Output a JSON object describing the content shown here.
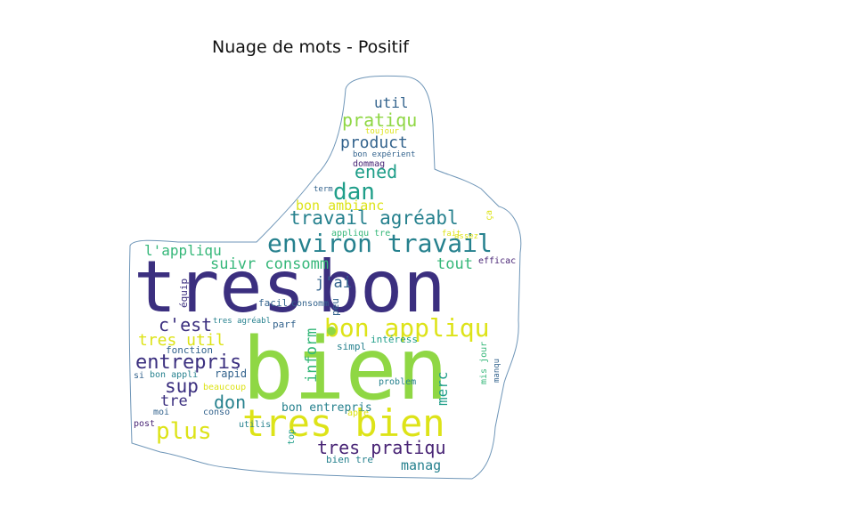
{
  "title": "Nuage de mots - Positif",
  "colors": {
    "indigo": "#3b2f7f",
    "purple": "#482475",
    "blue": "#33638d",
    "teal": "#26818e",
    "cyan": "#1f9e89",
    "green": "#35b779",
    "lime": "#8fd744",
    "yellow": "#dde318",
    "outline": "#6f96b8"
  },
  "words": [
    {
      "text": "tres",
      "color": "indigo"
    },
    {
      "text": "bon",
      "color": "indigo"
    },
    {
      "text": "bien",
      "color": "lime"
    },
    {
      "text": "tres bien",
      "color": "yellow"
    },
    {
      "text": "environ travail",
      "color": "teal"
    },
    {
      "text": "bon appliqu",
      "color": "yellow"
    },
    {
      "text": "travail agréabl",
      "color": "teal"
    },
    {
      "text": "dan",
      "color": "cyan"
    },
    {
      "text": "pratiqu",
      "color": "lime"
    },
    {
      "text": "product",
      "color": "blue"
    },
    {
      "text": "util",
      "color": "blue"
    },
    {
      "text": "ened",
      "color": "cyan"
    },
    {
      "text": "bon ambianc",
      "color": "yellow"
    },
    {
      "text": "l'appliqu",
      "color": "green"
    },
    {
      "text": "suivr consomm",
      "color": "green"
    },
    {
      "text": "tout",
      "color": "green"
    },
    {
      "text": "j'ai",
      "color": "blue"
    },
    {
      "text": "c'est",
      "color": "indigo"
    },
    {
      "text": "tres util",
      "color": "yellow"
    },
    {
      "text": "entrepris",
      "color": "indigo"
    },
    {
      "text": "sup",
      "color": "indigo"
    },
    {
      "text": "don",
      "color": "teal"
    },
    {
      "text": "tre",
      "color": "indigo"
    },
    {
      "text": "plus",
      "color": "yellow"
    },
    {
      "text": "tres pratiqu",
      "color": "purple"
    },
    {
      "text": "manag",
      "color": "teal"
    },
    {
      "text": "inform",
      "color": "green"
    },
    {
      "text": "merc",
      "color": "cyan"
    },
    {
      "text": "efficac",
      "color": "purple"
    },
    {
      "text": "équip",
      "color": "indigo"
    },
    {
      "text": "facil",
      "color": "blue"
    },
    {
      "text": "consomm",
      "color": "blue"
    },
    {
      "text": "peu",
      "color": "blue"
    },
    {
      "text": "tres agréabl",
      "color": "teal"
    },
    {
      "text": "parf",
      "color": "blue"
    },
    {
      "text": "intéress",
      "color": "cyan"
    },
    {
      "text": "simpl",
      "color": "teal"
    },
    {
      "text": "fonction",
      "color": "blue"
    },
    {
      "text": "rapid",
      "color": "blue"
    },
    {
      "text": "si",
      "color": "blue"
    },
    {
      "text": "bon appli",
      "color": "teal"
    },
    {
      "text": "beaucoup",
      "color": "yellow"
    },
    {
      "text": "problem",
      "color": "teal"
    },
    {
      "text": "mis jour",
      "color": "green"
    },
    {
      "text": "manqu",
      "color": "blue"
    },
    {
      "text": "moi",
      "color": "blue"
    },
    {
      "text": "conso",
      "color": "blue"
    },
    {
      "text": "bon entrepris",
      "color": "teal"
    },
    {
      "text": "apre",
      "color": "yellow"
    },
    {
      "text": "post",
      "color": "purple"
    },
    {
      "text": "utilis",
      "color": "teal"
    },
    {
      "text": "top",
      "color": "cyan"
    },
    {
      "text": "bien tre",
      "color": "teal"
    },
    {
      "text": "toujour",
      "color": "yellow"
    },
    {
      "text": "bon expérient",
      "color": "blue"
    },
    {
      "text": "dommag",
      "color": "purple"
    },
    {
      "text": "term",
      "color": "blue"
    },
    {
      "text": "ça",
      "color": "yellow"
    },
    {
      "text": "appliqu tre",
      "color": "green"
    },
    {
      "text": "fait",
      "color": "yellow"
    },
    {
      "text": "assez",
      "color": "yellow"
    }
  ]
}
